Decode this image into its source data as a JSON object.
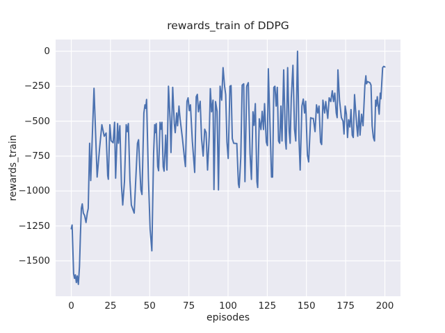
{
  "figure": {
    "title": "rewards_train of DDPG",
    "xlabel": "episodes",
    "ylabel": "rewards_train"
  },
  "chart_data": {
    "type": "line",
    "title": "rewards_train of DDPG",
    "xlabel": "episodes",
    "ylabel": "rewards_train",
    "grid": true,
    "legend": false,
    "xlim": [
      -10,
      210
    ],
    "ylim": [
      -1753,
      84
    ],
    "x_ticks": [
      0,
      25,
      50,
      75,
      100,
      125,
      150,
      175,
      200
    ],
    "x_tick_labels": [
      "0",
      "25",
      "50",
      "75",
      "100",
      "125",
      "150",
      "175",
      "200"
    ],
    "y_ticks": [
      0,
      -250,
      -500,
      -750,
      -1000,
      -1250,
      -1500
    ],
    "y_tick_labels": [
      "0",
      "−250",
      "−500",
      "−750",
      "−1000",
      "−1250",
      "−1500"
    ],
    "style": {
      "figure_bg": "#ffffff",
      "axes_bg": "#eaeaf2",
      "grid_color": "#ffffff",
      "line_color": "#4c72b0",
      "text_color": "#262626"
    },
    "series": [
      {
        "name": "rewards_train",
        "color": "#4c72b0",
        "points": [
          [
            0,
            -1270
          ],
          [
            0.5,
            -1243
          ],
          [
            1.5,
            -1592
          ],
          [
            2,
            -1625
          ],
          [
            2.6,
            -1600
          ],
          [
            3.2,
            -1655
          ],
          [
            3.8,
            -1608
          ],
          [
            4.5,
            -1668
          ],
          [
            5.2,
            -1542
          ],
          [
            5.8,
            -1325
          ],
          [
            6.4,
            -1125
          ],
          [
            7,
            -1092
          ],
          [
            7.7,
            -1158
          ],
          [
            8.5,
            -1175
          ],
          [
            9.4,
            -1225
          ],
          [
            10.2,
            -1158
          ],
          [
            10.8,
            -1125
          ],
          [
            11.7,
            -658
          ],
          [
            12.4,
            -925
          ],
          [
            14.5,
            -265
          ],
          [
            16.5,
            -900
          ],
          [
            18,
            -700
          ],
          [
            19.5,
            -525
          ],
          [
            21,
            -608
          ],
          [
            22.2,
            -585
          ],
          [
            23.2,
            -890
          ],
          [
            23.6,
            -916
          ],
          [
            24.6,
            -525
          ],
          [
            25.4,
            -640
          ],
          [
            26.7,
            -655
          ],
          [
            27.6,
            -508
          ],
          [
            28.3,
            -908
          ],
          [
            29.5,
            -517
          ],
          [
            30.1,
            -658
          ],
          [
            31,
            -533
          ],
          [
            32,
            -958
          ],
          [
            32.8,
            -1100
          ],
          [
            33.9,
            -933
          ],
          [
            35,
            -525
          ],
          [
            35.7,
            -575
          ],
          [
            36.4,
            -517
          ],
          [
            37.4,
            -925
          ],
          [
            38.3,
            -1100
          ],
          [
            40.1,
            -1158
          ],
          [
            42.2,
            -658
          ],
          [
            42.9,
            -633
          ],
          [
            43.6,
            -808
          ],
          [
            44.4,
            -992
          ],
          [
            45.1,
            -1025
          ],
          [
            46.3,
            -442
          ],
          [
            47,
            -383
          ],
          [
            47.5,
            -408
          ],
          [
            48,
            -345
          ],
          [
            49.2,
            -908
          ],
          [
            50.3,
            -1275
          ],
          [
            51.4,
            -1428
          ],
          [
            52.5,
            -733
          ],
          [
            53.2,
            -525
          ],
          [
            53.6,
            -583
          ],
          [
            54.2,
            -517
          ],
          [
            55.1,
            -825
          ],
          [
            55.7,
            -855
          ],
          [
            56.6,
            -508
          ],
          [
            57.2,
            -558
          ],
          [
            57.8,
            -508
          ],
          [
            58.6,
            -825
          ],
          [
            59.2,
            -858
          ],
          [
            60.2,
            -600
          ],
          [
            61,
            -850
          ],
          [
            62,
            -250
          ],
          [
            63.1,
            -508
          ],
          [
            63.6,
            -725
          ],
          [
            64.7,
            -258
          ],
          [
            65.7,
            -517
          ],
          [
            66.3,
            -583
          ],
          [
            67.2,
            -442
          ],
          [
            67.8,
            -533
          ],
          [
            68.7,
            -392
          ],
          [
            69.4,
            -483
          ],
          [
            70.9,
            -625
          ],
          [
            72.3,
            -775
          ],
          [
            72.8,
            -825
          ],
          [
            73.8,
            -358
          ],
          [
            74.5,
            -333
          ],
          [
            75.3,
            -425
          ],
          [
            76,
            -383
          ],
          [
            77.2,
            -642
          ],
          [
            78.7,
            -867
          ],
          [
            79.7,
            -325
          ],
          [
            80.4,
            -308
          ],
          [
            81.1,
            -433
          ],
          [
            82.2,
            -358
          ],
          [
            83.1,
            -625
          ],
          [
            84.1,
            -750
          ],
          [
            85.1,
            -558
          ],
          [
            86,
            -583
          ],
          [
            86.9,
            -850
          ],
          [
            88,
            -608
          ],
          [
            88.7,
            -267
          ],
          [
            89.5,
            -433
          ],
          [
            90.4,
            -350
          ],
          [
            91,
            -990
          ],
          [
            92,
            -360
          ],
          [
            93,
            -430
          ],
          [
            93.9,
            -992
          ],
          [
            94.9,
            -250
          ],
          [
            95.9,
            -350
          ],
          [
            96.8,
            -117
          ],
          [
            97.8,
            -250
          ],
          [
            98.5,
            -310
          ],
          [
            99.3,
            -650
          ],
          [
            100.1,
            -767
          ],
          [
            101.2,
            -250
          ],
          [
            101.9,
            -245
          ],
          [
            102.7,
            -625
          ],
          [
            103.6,
            -658
          ],
          [
            105.6,
            -660
          ],
          [
            106.6,
            -950
          ],
          [
            107.1,
            -975
          ],
          [
            108.1,
            -760
          ],
          [
            109,
            -242
          ],
          [
            110,
            -233
          ],
          [
            110.8,
            -933
          ],
          [
            111.9,
            -250
          ],
          [
            112.9,
            -225
          ],
          [
            114,
            -733
          ],
          [
            114.9,
            -917
          ],
          [
            115.9,
            -433
          ],
          [
            116.6,
            -530
          ],
          [
            117.4,
            -375
          ],
          [
            118.4,
            -933
          ],
          [
            118.9,
            -975
          ],
          [
            119.9,
            -483
          ],
          [
            121,
            -560
          ],
          [
            121.8,
            -430
          ],
          [
            122.6,
            -560
          ],
          [
            123.3,
            -375
          ],
          [
            124.4,
            -650
          ],
          [
            125.1,
            -675
          ],
          [
            125.7,
            -125
          ],
          [
            126.9,
            -575
          ],
          [
            127.7,
            -900
          ],
          [
            128.4,
            -900
          ],
          [
            129.2,
            -258
          ],
          [
            129.9,
            -250
          ],
          [
            130.7,
            -392
          ],
          [
            131.4,
            -258
          ],
          [
            132.2,
            -642
          ],
          [
            132.9,
            -658
          ],
          [
            133.7,
            -392
          ],
          [
            134.4,
            -642
          ],
          [
            135.5,
            -133
          ],
          [
            136.6,
            -642
          ],
          [
            137.1,
            -700
          ],
          [
            138,
            -117
          ],
          [
            139,
            -575
          ],
          [
            139.6,
            -658
          ],
          [
            140.3,
            -333
          ],
          [
            141.4,
            -100
          ],
          [
            142.4,
            -558
          ],
          [
            143.2,
            -642
          ],
          [
            144.3,
            0
          ],
          [
            145.3,
            -642
          ],
          [
            146,
            -850
          ],
          [
            147.1,
            -392
          ],
          [
            148,
            -342
          ],
          [
            148.8,
            -442
          ],
          [
            149.5,
            -358
          ],
          [
            150.6,
            -742
          ],
          [
            151.4,
            -792
          ],
          [
            152.7,
            -475
          ],
          [
            153.5,
            -480
          ],
          [
            154.4,
            -480
          ],
          [
            155.5,
            -575
          ],
          [
            156.4,
            -383
          ],
          [
            157.2,
            -442
          ],
          [
            158,
            -392
          ],
          [
            159,
            -650
          ],
          [
            159.7,
            -667
          ],
          [
            160.5,
            -350
          ],
          [
            161.6,
            -442
          ],
          [
            162.3,
            -360
          ],
          [
            163.6,
            -480
          ],
          [
            164.5,
            -333
          ],
          [
            165.5,
            -360
          ],
          [
            166.5,
            -283
          ],
          [
            167.3,
            -360
          ],
          [
            168.1,
            -300
          ],
          [
            169,
            -442
          ],
          [
            169.6,
            -475
          ],
          [
            170.1,
            -133
          ],
          [
            171.1,
            -350
          ],
          [
            172.3,
            -475
          ],
          [
            173.3,
            -500
          ],
          [
            174,
            -592
          ],
          [
            174.7,
            -392
          ],
          [
            175.5,
            -450
          ],
          [
            176.2,
            -617
          ],
          [
            176.9,
            -490
          ],
          [
            177.7,
            -542
          ],
          [
            178.4,
            -417
          ],
          [
            179.2,
            -600
          ],
          [
            179.9,
            -617
          ],
          [
            180.7,
            -310
          ],
          [
            182,
            -525
          ],
          [
            182.7,
            -608
          ],
          [
            183.5,
            -425
          ],
          [
            184.2,
            -600
          ],
          [
            185.2,
            -450
          ],
          [
            186.1,
            -533
          ],
          [
            187.3,
            -242
          ],
          [
            187.9,
            -175
          ],
          [
            188.3,
            -233
          ],
          [
            189,
            -217
          ],
          [
            190.5,
            -225
          ],
          [
            191.2,
            -242
          ],
          [
            191.9,
            -533
          ],
          [
            192.7,
            -617
          ],
          [
            193.4,
            -642
          ],
          [
            194.1,
            -350
          ],
          [
            194.6,
            -392
          ],
          [
            195.2,
            -325
          ],
          [
            196.4,
            -450
          ],
          [
            197.1,
            -300
          ],
          [
            197.5,
            -340
          ],
          [
            198.6,
            -117
          ],
          [
            199.3,
            -108
          ],
          [
            200,
            -112
          ]
        ]
      }
    ]
  }
}
